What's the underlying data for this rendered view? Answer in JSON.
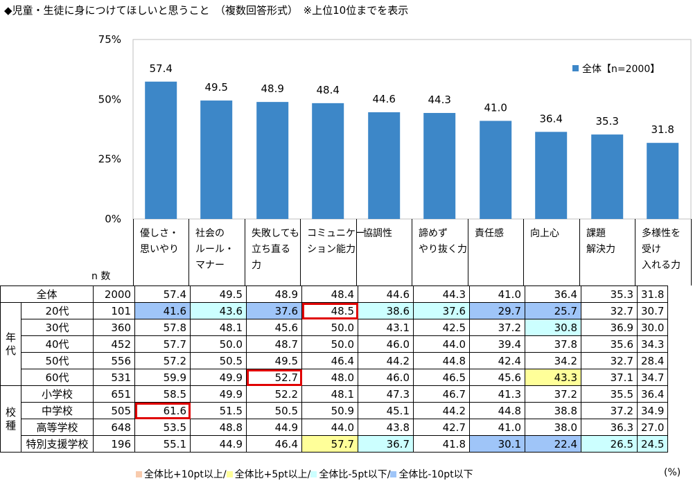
{
  "title": "◆児童・生徒に身につけてほしいと思うこと　（複数回答形式）　※上位10位までを表示",
  "chart_data": {
    "type": "bar",
    "categories": [
      [
        "優しさ・",
        "思いやり"
      ],
      [
        "社会の",
        "ルール・",
        "マナー"
      ],
      [
        "失敗しても",
        "立ち直る",
        "力"
      ],
      [
        "コミュニケー",
        "ション能力"
      ],
      [
        "協調性"
      ],
      [
        "諦めず",
        "やり抜く力"
      ],
      [
        "責任感"
      ],
      [
        "向上心"
      ],
      [
        "課題",
        "解決力"
      ],
      [
        "多様性を",
        "受け",
        "入れる力"
      ]
    ],
    "series": [
      {
        "name": "全体【n=2000】",
        "values": [
          57.4,
          49.5,
          48.9,
          48.4,
          44.6,
          44.3,
          41.0,
          36.4,
          35.3,
          31.8
        ]
      }
    ],
    "data_labels": [
      "57.4",
      "49.5",
      "48.9",
      "48.4",
      "44.6",
      "44.3",
      "41.0",
      "36.4",
      "35.3",
      "31.8"
    ],
    "yticks": [
      "75%",
      "50%",
      "25%",
      "0%"
    ],
    "ytick_values": [
      75,
      50,
      25,
      0
    ],
    "ylim": [
      0,
      75
    ],
    "legend": "top-right",
    "bar_color": "#3d87c8"
  },
  "n_label": "n 数",
  "groups": {
    "age": [
      "年",
      "代"
    ],
    "school": [
      "校",
      "種"
    ]
  },
  "table": [
    {
      "label": "全体",
      "n": "2000",
      "v": [
        "57.4",
        "49.5",
        "48.9",
        "48.4",
        "44.6",
        "44.3",
        "41.0",
        "36.4",
        "35.3",
        "31.8"
      ],
      "hl": [
        "",
        "",
        "",
        "",
        "",
        "",
        "",
        "",
        "",
        ""
      ],
      "box": []
    },
    {
      "label": "20代",
      "n": "101",
      "v": [
        "41.6",
        "43.6",
        "37.6",
        "48.5",
        "38.6",
        "37.6",
        "29.7",
        "25.7",
        "32.7",
        "30.7"
      ],
      "hl": [
        "lo10",
        "lo5",
        "lo10",
        "",
        "lo5",
        "lo5",
        "lo10",
        "lo10",
        "",
        ""
      ],
      "box": [
        3
      ],
      "group": "age",
      "first": true
    },
    {
      "label": "30代",
      "n": "360",
      "v": [
        "57.8",
        "48.1",
        "45.6",
        "50.0",
        "43.1",
        "42.5",
        "37.2",
        "30.8",
        "36.9",
        "30.0"
      ],
      "hl": [
        "",
        "",
        "",
        "",
        "",
        "",
        "",
        "lo5",
        "",
        ""
      ],
      "box": [],
      "group": "age"
    },
    {
      "label": "40代",
      "n": "452",
      "v": [
        "57.7",
        "50.0",
        "48.7",
        "50.0",
        "46.0",
        "44.0",
        "39.4",
        "37.8",
        "35.6",
        "34.3"
      ],
      "hl": [
        "",
        "",
        "",
        "",
        "",
        "",
        "",
        "",
        "",
        ""
      ],
      "box": [],
      "group": "age"
    },
    {
      "label": "50代",
      "n": "556",
      "v": [
        "57.2",
        "50.5",
        "49.5",
        "46.4",
        "44.2",
        "44.8",
        "42.4",
        "34.2",
        "32.7",
        "28.4"
      ],
      "hl": [
        "",
        "",
        "",
        "",
        "",
        "",
        "",
        "",
        "",
        ""
      ],
      "box": [],
      "group": "age"
    },
    {
      "label": "60代",
      "n": "531",
      "v": [
        "59.9",
        "49.9",
        "52.7",
        "48.0",
        "46.0",
        "46.5",
        "45.6",
        "43.3",
        "37.1",
        "34.7"
      ],
      "hl": [
        "",
        "",
        "",
        "",
        "",
        "",
        "",
        "hi5",
        "",
        ""
      ],
      "box": [
        2
      ],
      "group": "age"
    },
    {
      "label": "小学校",
      "n": "651",
      "v": [
        "58.5",
        "49.9",
        "52.2",
        "48.1",
        "47.3",
        "46.7",
        "41.3",
        "37.2",
        "35.5",
        "36.4"
      ],
      "hl": [
        "",
        "",
        "",
        "",
        "",
        "",
        "",
        "",
        "",
        ""
      ],
      "box": [],
      "group": "school",
      "first": true
    },
    {
      "label": "中学校",
      "n": "505",
      "v": [
        "61.6",
        "51.5",
        "50.5",
        "50.9",
        "45.1",
        "44.2",
        "44.8",
        "38.8",
        "37.2",
        "34.9"
      ],
      "hl": [
        "",
        "",
        "",
        "",
        "",
        "",
        "",
        "",
        "",
        ""
      ],
      "box": [
        0
      ],
      "group": "school"
    },
    {
      "label": "高等学校",
      "n": "648",
      "v": [
        "53.5",
        "48.8",
        "44.9",
        "44.0",
        "43.8",
        "42.7",
        "41.0",
        "38.0",
        "36.3",
        "27.0"
      ],
      "hl": [
        "",
        "",
        "",
        "",
        "",
        "",
        "",
        "",
        "",
        ""
      ],
      "box": [],
      "group": "school"
    },
    {
      "label": "特別支援学校",
      "n": "196",
      "v": [
        "55.1",
        "44.9",
        "46.4",
        "57.7",
        "36.7",
        "41.8",
        "30.1",
        "22.4",
        "26.5",
        "24.5"
      ],
      "hl": [
        "",
        "",
        "",
        "hi5",
        "lo5",
        "",
        "lo10",
        "lo10",
        "lo5",
        "lo5"
      ],
      "box": [],
      "group": "school"
    }
  ],
  "legend_items": [
    {
      "label": "全体比+10pt以上/",
      "color": "#f8cbad"
    },
    {
      "label": "全体比+5pt以上/",
      "color": "#ffff99"
    },
    {
      "label": "全体比-5pt以下/",
      "color": "#ccffff"
    },
    {
      "label": "全体比-10pt以下",
      "color": "#9fc5f8"
    }
  ],
  "unit": "(%)"
}
